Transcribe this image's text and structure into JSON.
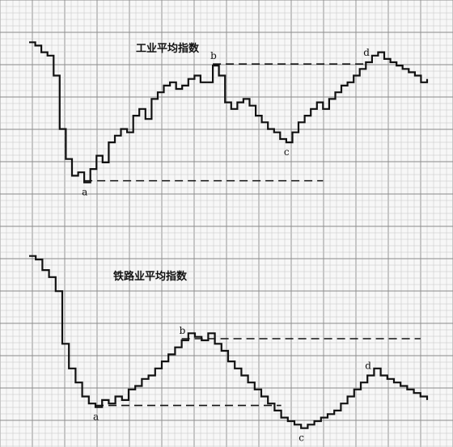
{
  "chart_data": [
    {
      "type": "line",
      "style": "step",
      "grid": true,
      "title": "工业平均指数",
      "series": [
        {
          "values": [
            100,
            99,
            97,
            96,
            90,
            74,
            65,
            60,
            61,
            58,
            62,
            66,
            64,
            70,
            72,
            74,
            73,
            78,
            80,
            77,
            83,
            85,
            87,
            88,
            86,
            87,
            89,
            90,
            88,
            88,
            93,
            90,
            82,
            80,
            82,
            83,
            81,
            78,
            76,
            74,
            73,
            71,
            70,
            73,
            76,
            78,
            80,
            82,
            80,
            83,
            85,
            87,
            88,
            90,
            92,
            94,
            96,
            97,
            95,
            94,
            93,
            92,
            91,
            90,
            88,
            89
          ]
        }
      ],
      "annotations": [
        {
          "label": "a",
          "index": 9
        },
        {
          "label": "b",
          "index": 30
        },
        {
          "label": "c",
          "index": 42
        },
        {
          "label": "d",
          "index": 55
        }
      ],
      "reference_lines": [
        {
          "style": "dashed",
          "through": "b",
          "to": "d"
        },
        {
          "style": "dashed",
          "through": "a",
          "to_index": 48
        }
      ]
    },
    {
      "type": "line",
      "style": "step",
      "grid": true,
      "title": "铁路业平均指数",
      "series": [
        {
          "values": [
            100,
            99,
            96,
            94,
            90,
            75,
            68,
            64,
            60,
            58,
            57,
            59,
            58,
            60,
            59,
            62,
            63,
            65,
            66,
            68,
            70,
            72,
            74,
            76,
            78,
            77,
            76,
            78,
            75,
            73,
            70,
            68,
            66,
            64,
            62,
            60,
            58,
            56,
            54,
            53,
            52,
            51,
            52,
            53,
            54,
            55,
            56,
            58,
            60,
            62,
            64,
            66,
            68,
            66,
            65,
            64,
            63,
            62,
            61,
            60,
            59
          ]
        }
      ],
      "annotations": [
        {
          "label": "a",
          "index": 10
        },
        {
          "label": "b",
          "index": 23
        },
        {
          "label": "c",
          "index": 41
        },
        {
          "label": "d",
          "index": 51
        }
      ],
      "reference_lines": [
        {
          "style": "dashed",
          "through": "b",
          "to_index": 59
        },
        {
          "style": "dashed",
          "through": "a",
          "to_index": 38
        }
      ]
    }
  ]
}
